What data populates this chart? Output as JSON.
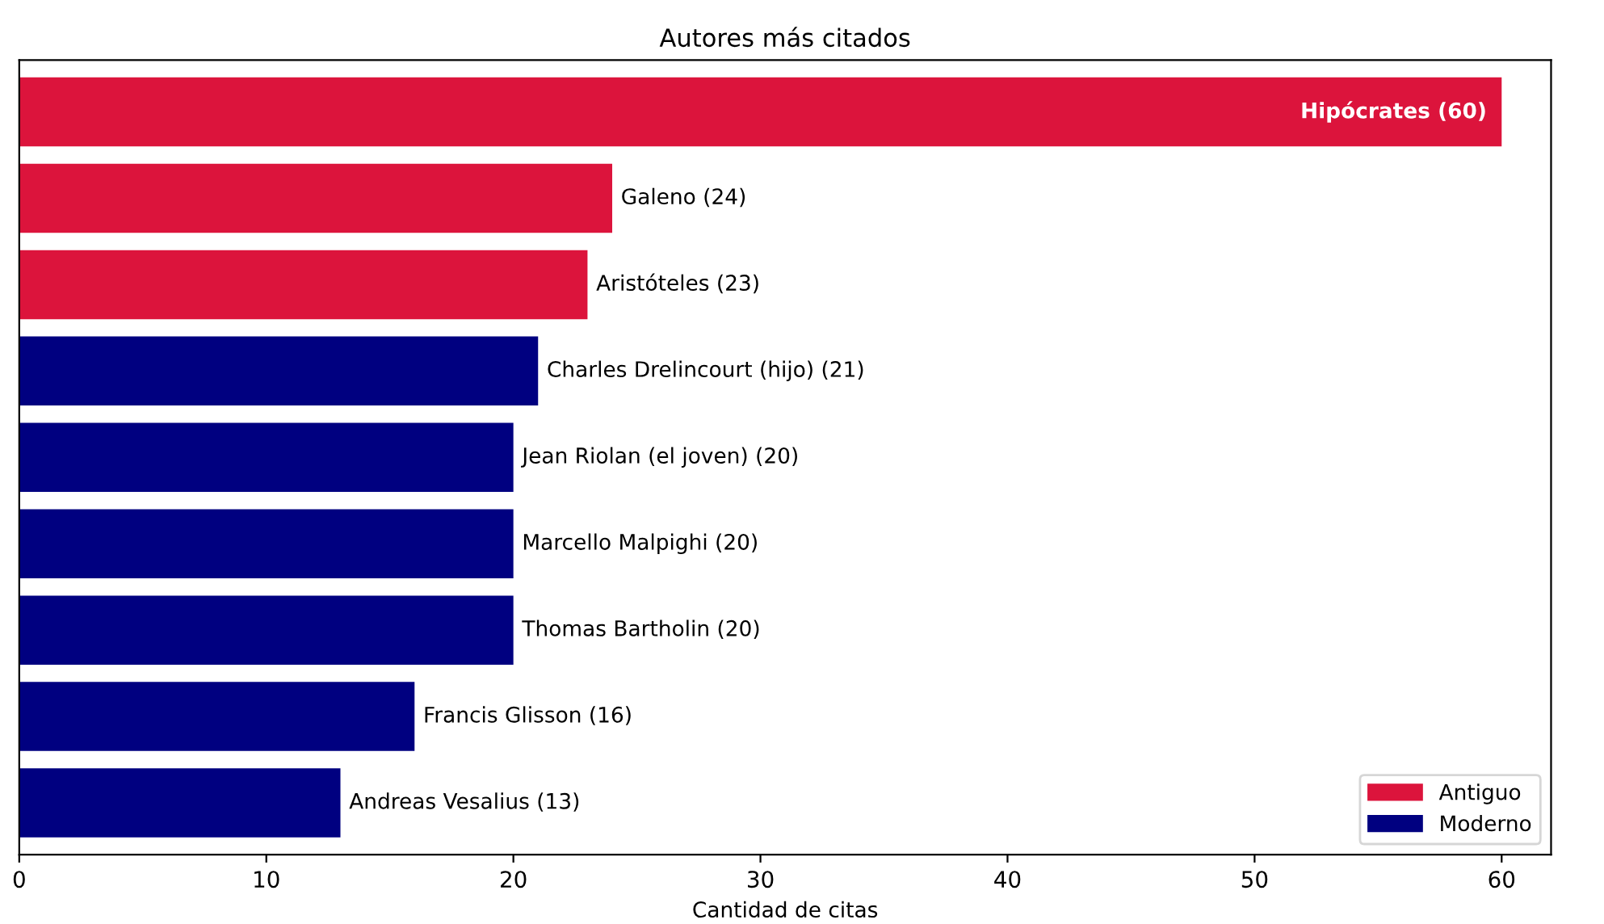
{
  "chart_data": {
    "type": "bar",
    "orientation": "horizontal",
    "title": "Autores más citados",
    "xlabel": "Cantidad de citas",
    "categories": [
      null,
      null,
      null,
      null,
      null,
      null,
      null,
      null,
      null
    ],
    "series": [
      {
        "name": "Antiguo",
        "color": "#dc143c",
        "values": [
          60,
          24,
          23,
          null,
          null,
          null,
          null,
          null,
          null
        ],
        "value_labels": [
          "Hipócrates (60)",
          "Galeno (24)",
          "Aristóteles (23)",
          null,
          null,
          null,
          null,
          null,
          null
        ]
      },
      {
        "name": "Moderno",
        "color": "#000080",
        "values": [
          null,
          null,
          null,
          21,
          20,
          20,
          20,
          16,
          13
        ],
        "value_labels": [
          null,
          null,
          null,
          "Charles Drelincourt (hijo) (21)",
          "Jean Riolan (el joven) (20)",
          "Marcello Malpighi (20)",
          "Thomas Bartholin (20)",
          "Francis Glisson (16)",
          "Andreas Vesalius (13)"
        ]
      }
    ],
    "xlim": [
      0,
      62
    ],
    "xticks": [
      0,
      10,
      20,
      30,
      40,
      50,
      60
    ],
    "tick_labels": "x",
    "grid": false,
    "legend": "bottom right"
  }
}
